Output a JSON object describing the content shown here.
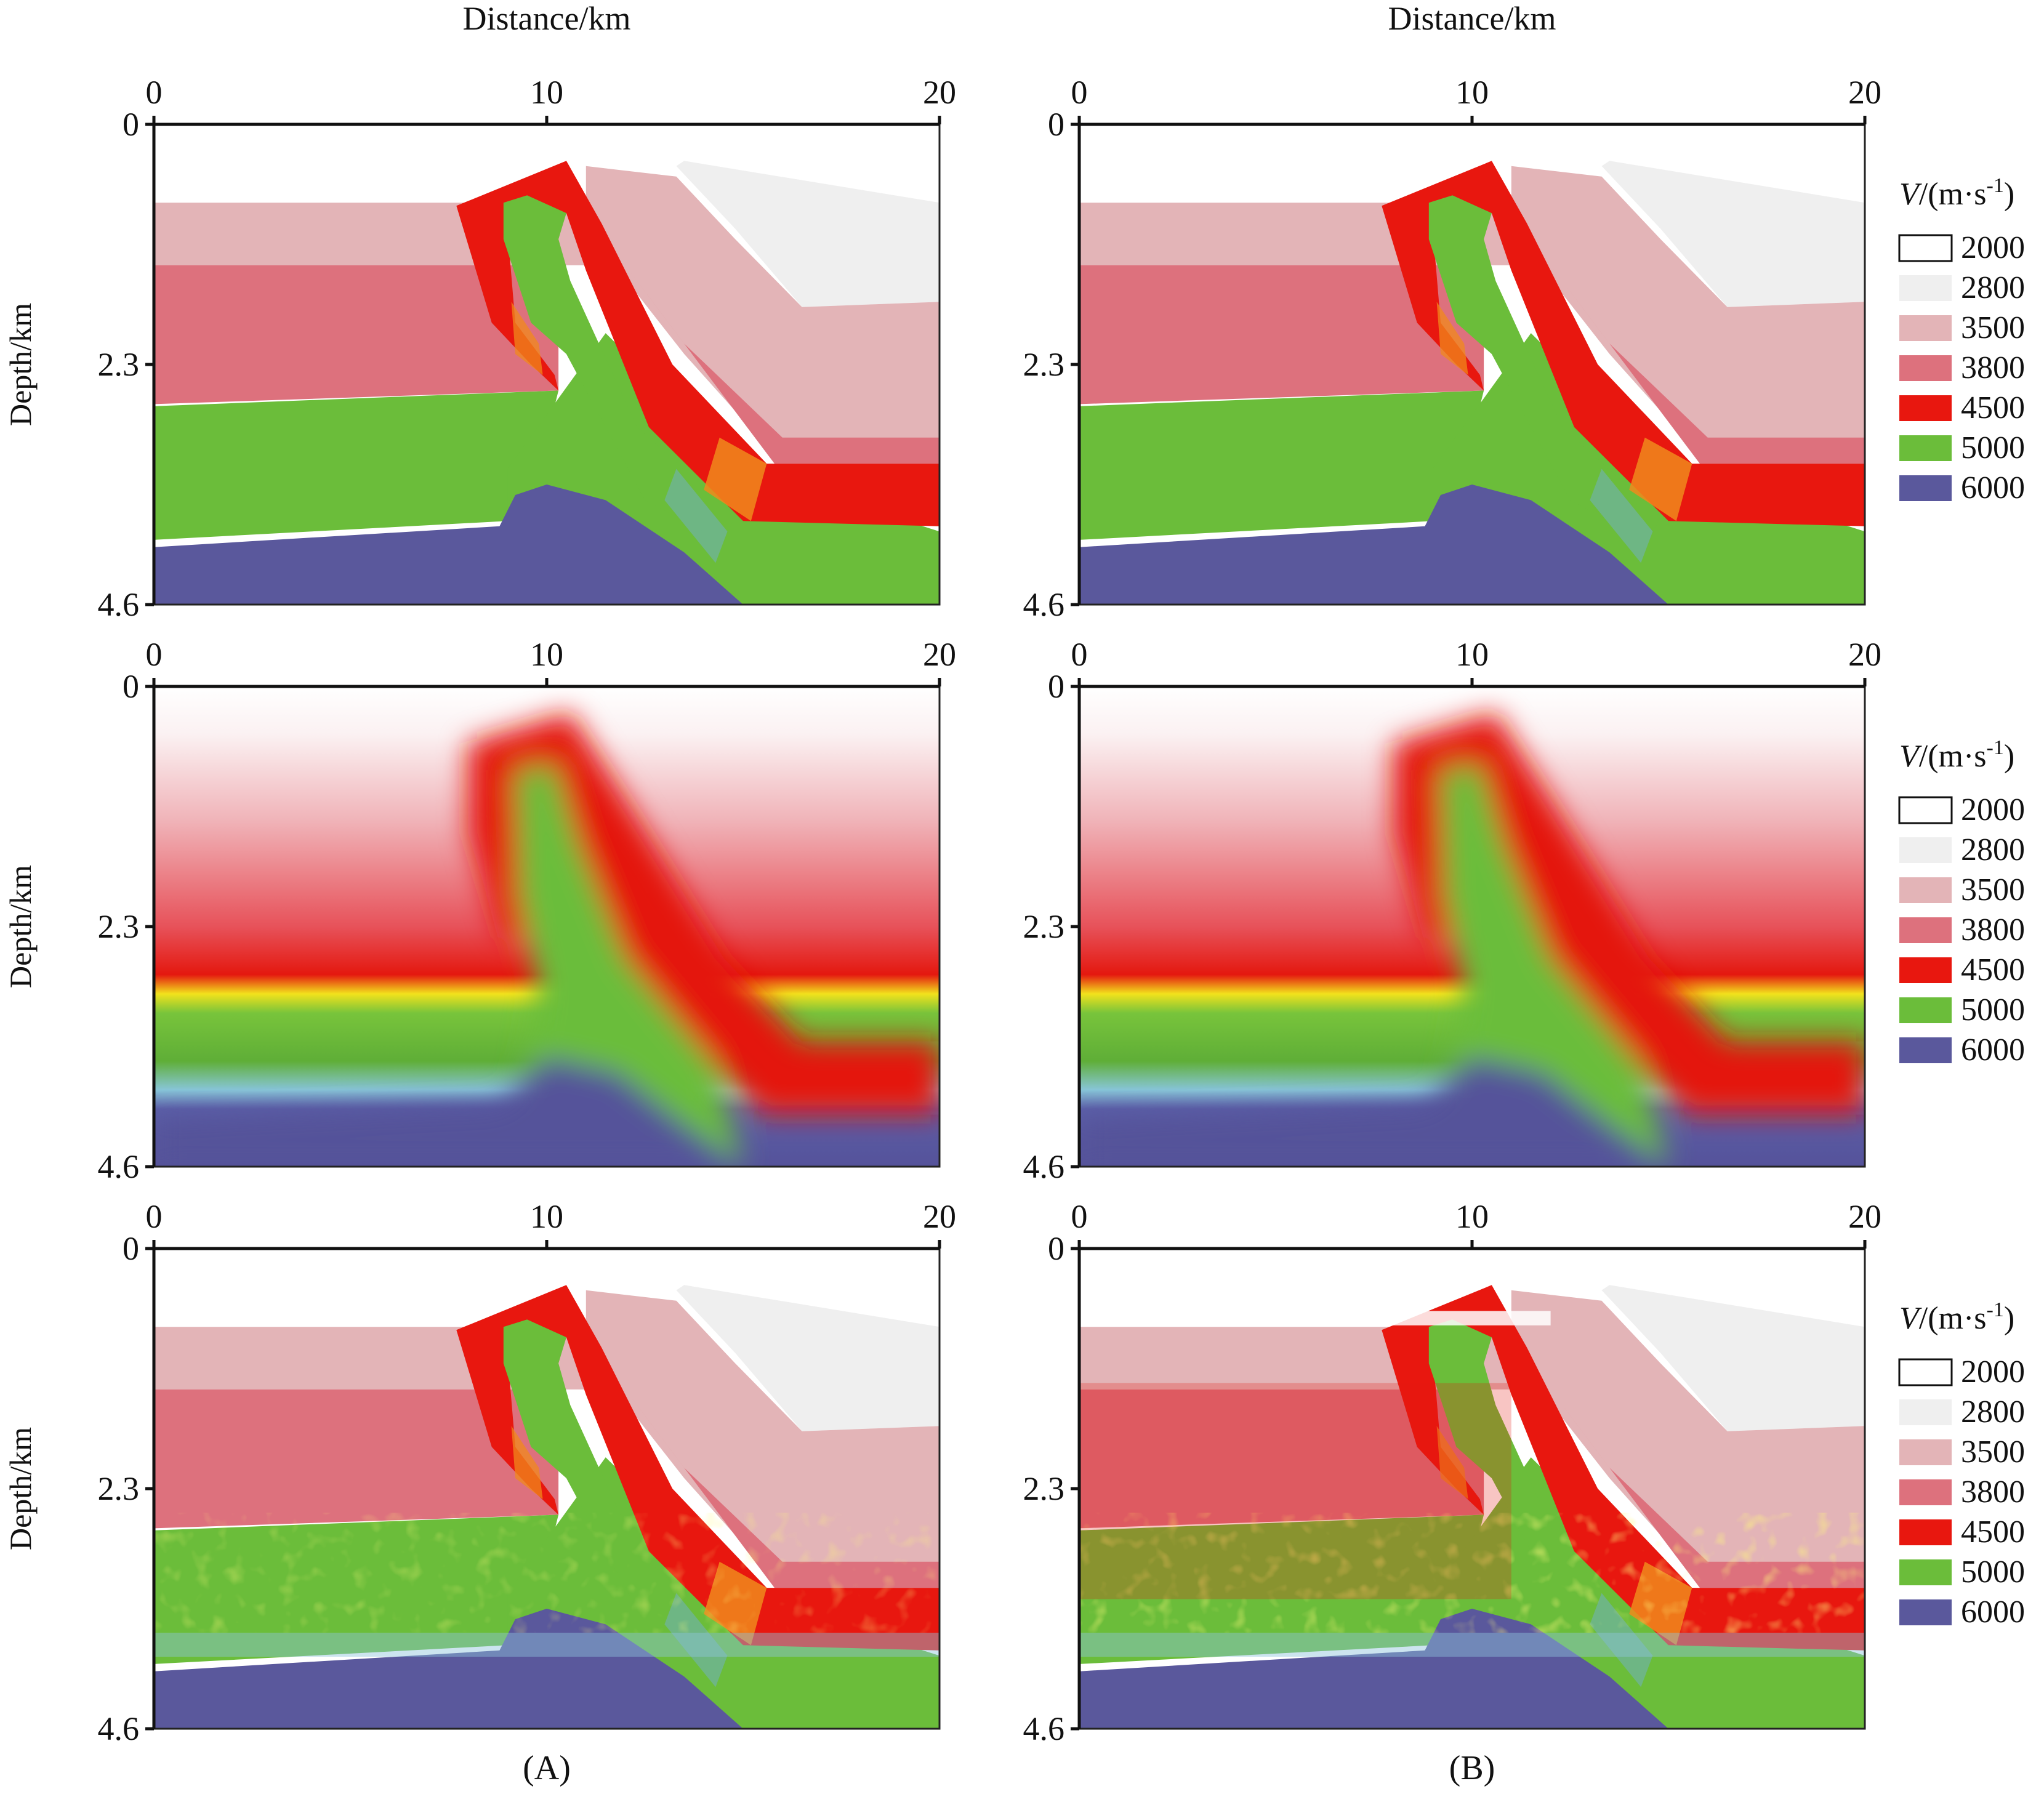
{
  "figure": {
    "column_titles": [
      "Distance/km",
      "Distance/km"
    ],
    "captions": [
      "(A)",
      "(B)"
    ]
  },
  "chart_data": {
    "type": "heatmap",
    "x_axis": {
      "label": "Distance/km",
      "range": [
        0,
        20
      ],
      "ticks": [
        0,
        10,
        20
      ]
    },
    "y_axis": {
      "label": "Depth/km",
      "range": [
        0,
        4.6
      ],
      "ticks": [
        0,
        2.3,
        4.6
      ],
      "inverted": true
    },
    "legend": {
      "title_italic": "V",
      "title_rest": "/(m·s",
      "title_sup": "-1",
      "title_close": ")",
      "placement": "right",
      "entries": [
        {
          "value": "2000",
          "color": "#ffffff"
        },
        {
          "value": "2800",
          "color": "#efefef"
        },
        {
          "value": "3500",
          "color": "#e3b4b7"
        },
        {
          "value": "3800",
          "color": "#dd717d"
        },
        {
          "value": "4500",
          "color": "#e8170f"
        },
        {
          "value": "5000",
          "color": "#6bbd3a"
        },
        {
          "value": "6000",
          "color": "#5a589c"
        }
      ]
    },
    "panels": [
      {
        "id": "A1",
        "column": "A",
        "row": 1,
        "style": "blocky"
      },
      {
        "id": "B1",
        "column": "B",
        "row": 1,
        "style": "blocky"
      },
      {
        "id": "A2",
        "column": "A",
        "row": 2,
        "style": "smooth"
      },
      {
        "id": "B2",
        "column": "B",
        "row": 2,
        "style": "smooth"
      },
      {
        "id": "A3",
        "column": "A",
        "row": 3,
        "style": "inverted"
      },
      {
        "id": "B3",
        "column": "B",
        "row": 3,
        "style": "noisy"
      }
    ]
  }
}
